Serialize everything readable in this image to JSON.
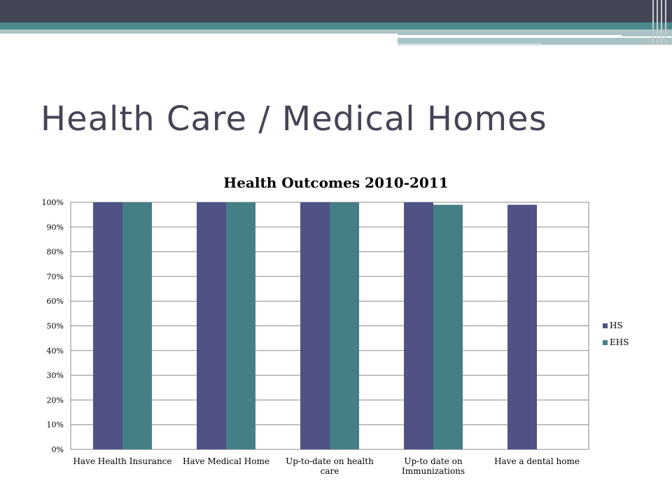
{
  "slide": {
    "title": "Health Care / Medical Homes"
  },
  "colors": {
    "header_bar": "#434555",
    "teal_band": "#4a8a8a",
    "light_band": "#a9c3c6",
    "title_text": "#434555",
    "series_hs": "#505286",
    "series_ehs": "#457f86",
    "gridline": "#8a8a8a"
  },
  "chart_data": {
    "type": "bar",
    "title": "Health Outcomes 2010-2011",
    "categories": [
      [
        "Have Health Insurance"
      ],
      [
        "Have Medical Home"
      ],
      [
        "Up-to-date on health",
        "care"
      ],
      [
        "Up-to date on",
        "Immunizations"
      ],
      [
        "Have a dental home"
      ]
    ],
    "series": [
      {
        "name": "HS",
        "values": [
          100,
          100,
          100,
          100,
          99
        ]
      },
      {
        "name": "EHS",
        "values": [
          100,
          100,
          100,
          99,
          null
        ]
      }
    ],
    "ylim": [
      0,
      100
    ],
    "yticks": [
      "0%",
      "10%",
      "20%",
      "30%",
      "40%",
      "50%",
      "60%",
      "70%",
      "80%",
      "90%",
      "100%"
    ],
    "xlabel": "",
    "ylabel": "",
    "grid": true,
    "legend": "right"
  }
}
